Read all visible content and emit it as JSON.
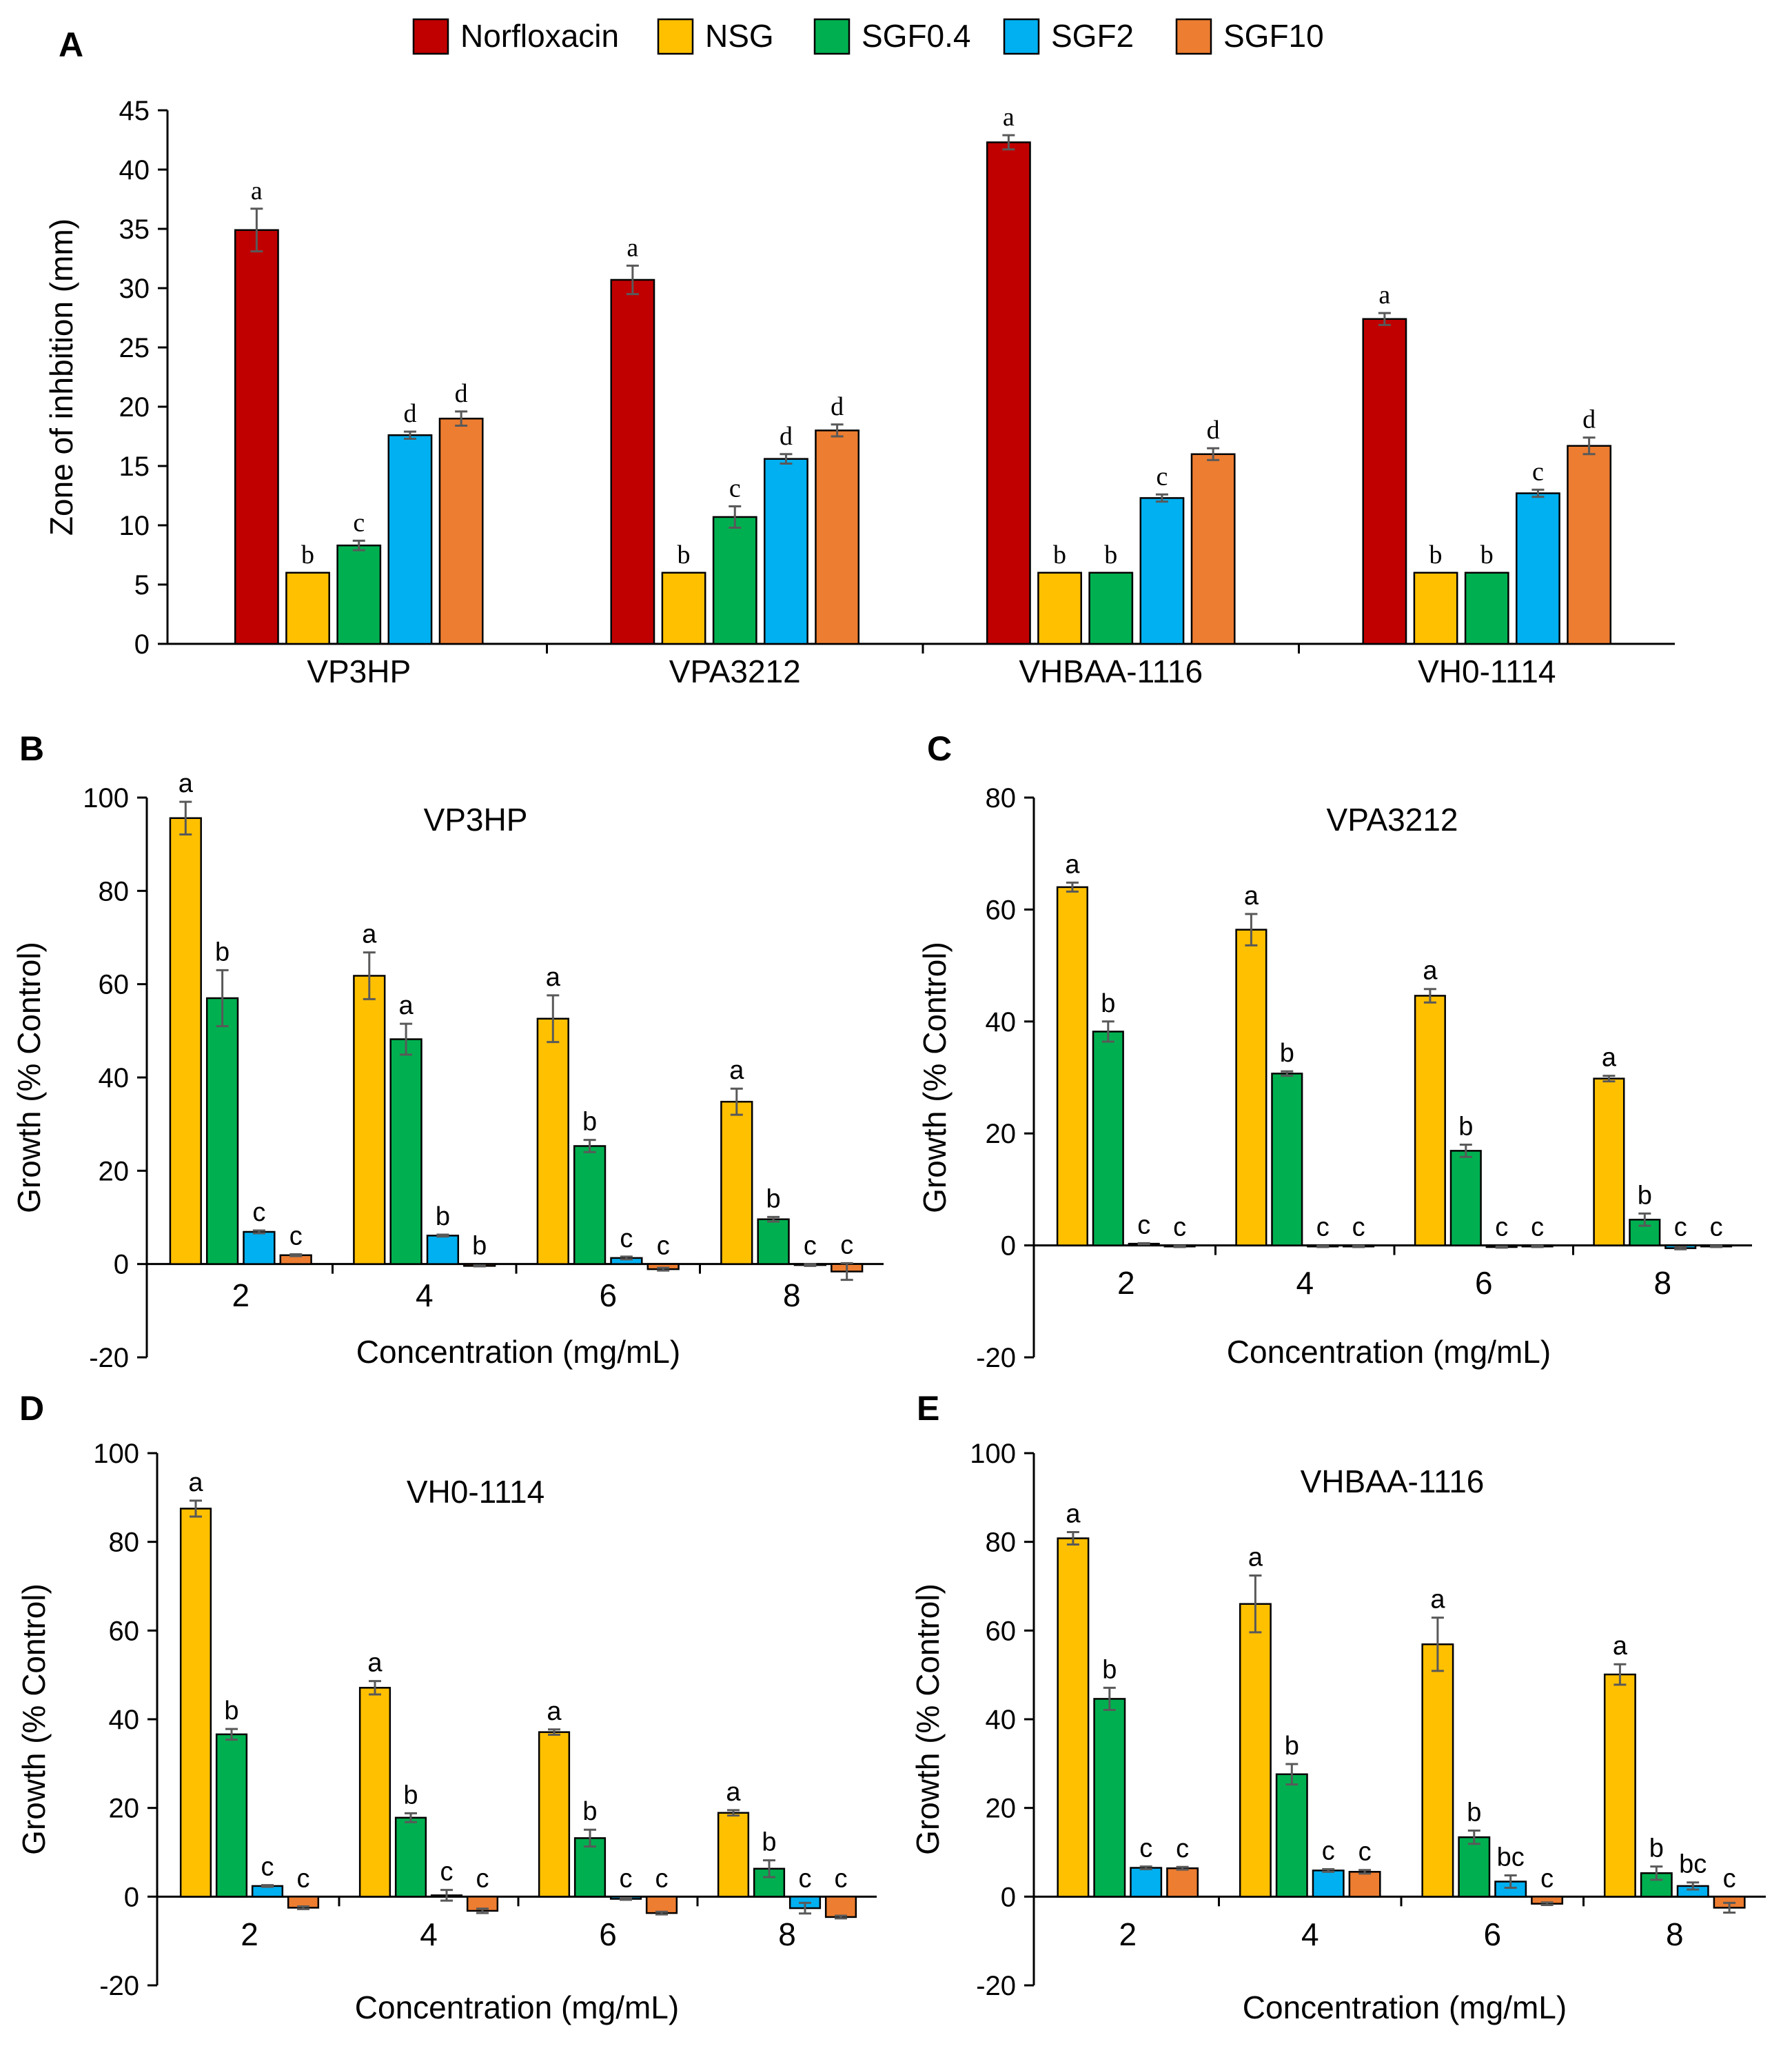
{
  "colors": {
    "Norfloxacin": "#C00000",
    "NSG": "#FFC000",
    "SGF0.4": "#00B050",
    "SGF2": "#00B0F0",
    "SGF10": "#ED7D31",
    "axis": "#000000",
    "error": "#595959"
  },
  "legend": [
    "Norfloxacin",
    "NSG",
    "SGF0.4",
    "SGF2",
    "SGF10"
  ],
  "chart_data": [
    {
      "panel": "A",
      "type": "bar",
      "title": "",
      "xlabel": "",
      "ylabel": "Zone of inhbition (mm)",
      "ylim": [
        0,
        45
      ],
      "ytick_step": 5,
      "categories": [
        "VP3HP",
        "VPA3212",
        "VHBAA-1116",
        "VH0-1114"
      ],
      "series": [
        {
          "name": "Norfloxacin",
          "values": [
            34.9,
            30.7,
            42.3,
            27.4
          ],
          "errors": [
            1.8,
            1.2,
            0.6,
            0.5
          ],
          "letters": [
            "a",
            "a",
            "a",
            "a"
          ]
        },
        {
          "name": "NSG",
          "values": [
            6,
            6,
            6,
            6
          ],
          "errors": [
            0,
            0,
            0,
            0
          ],
          "letters": [
            "b",
            "b",
            "b",
            "b"
          ]
        },
        {
          "name": "SGF0.4",
          "values": [
            8.3,
            10.7,
            6,
            6
          ],
          "errors": [
            0.4,
            0.9,
            0,
            0
          ],
          "letters": [
            "c",
            "c",
            "b",
            "b"
          ]
        },
        {
          "name": "SGF2",
          "values": [
            17.6,
            15.6,
            12.3,
            12.7
          ],
          "errors": [
            0.3,
            0.4,
            0.3,
            0.3
          ],
          "letters": [
            "d",
            "d",
            "c",
            "c"
          ]
        },
        {
          "name": "SGF10",
          "values": [
            19.0,
            18.0,
            16.0,
            16.7
          ],
          "errors": [
            0.6,
            0.5,
            0.5,
            0.7
          ],
          "letters": [
            "d",
            "d",
            "d",
            "d"
          ]
        }
      ]
    },
    {
      "panel": "B",
      "type": "bar",
      "title": "VP3HP",
      "xlabel": "Concentration (mg/mL)",
      "ylabel": "Growth (% Control)",
      "ylim": [
        -20,
        100
      ],
      "ytick_step": 20,
      "categories": [
        "2",
        "4",
        "6",
        "8"
      ],
      "series": [
        {
          "name": "NSG",
          "values": [
            95.6,
            61.8,
            52.6,
            34.8
          ],
          "errors": [
            3.5,
            5.0,
            5.0,
            2.8
          ],
          "letters": [
            "a",
            "a",
            "a",
            "a"
          ]
        },
        {
          "name": "SGF0.4",
          "values": [
            57.0,
            48.2,
            25.3,
            9.6
          ],
          "errors": [
            6.0,
            3.3,
            1.3,
            0.5
          ],
          "letters": [
            "b",
            "a",
            "b",
            "b"
          ]
        },
        {
          "name": "SGF2",
          "values": [
            6.9,
            6.1,
            1.3,
            -0.2
          ],
          "errors": [
            0.3,
            0.2,
            0.3,
            0.2
          ],
          "letters": [
            "c",
            "b",
            "c",
            "c"
          ]
        },
        {
          "name": "SGF10",
          "values": [
            1.9,
            -0.4,
            -1.1,
            -1.6
          ],
          "errors": [
            0.2,
            0.1,
            0.3,
            1.8
          ],
          "letters": [
            "c",
            "b",
            "c",
            "c"
          ]
        }
      ]
    },
    {
      "panel": "C",
      "type": "bar",
      "title": "VPA3212",
      "xlabel": "Concentration (mg/mL)",
      "ylabel": "Growth (% Control)",
      "ylim": [
        -20,
        80
      ],
      "ytick_step": 20,
      "categories": [
        "2",
        "4",
        "6",
        "8"
      ],
      "series": [
        {
          "name": "NSG",
          "values": [
            64.0,
            56.4,
            44.6,
            29.8
          ],
          "errors": [
            0.8,
            2.8,
            1.2,
            0.5
          ],
          "letters": [
            "a",
            "a",
            "a",
            "a"
          ]
        },
        {
          "name": "SGF0.4",
          "values": [
            38.2,
            30.7,
            16.9,
            4.6
          ],
          "errors": [
            1.8,
            0.4,
            1.1,
            1.1
          ],
          "letters": [
            "b",
            "b",
            "b",
            "b"
          ]
        },
        {
          "name": "SGF2",
          "values": [
            0.3,
            -0.2,
            -0.3,
            -0.5
          ],
          "errors": [
            0.1,
            0.1,
            0.1,
            0.2
          ],
          "letters": [
            "c",
            "c",
            "c",
            "c"
          ]
        },
        {
          "name": "SGF10",
          "values": [
            -0.2,
            -0.2,
            -0.2,
            -0.2
          ],
          "errors": [
            0.1,
            0.1,
            0.1,
            0.1
          ],
          "letters": [
            "c",
            "c",
            "c",
            "c"
          ]
        }
      ]
    },
    {
      "panel": "D",
      "type": "bar",
      "title": "VH0-1114",
      "xlabel": "Concentration (mg/mL)",
      "ylabel": "Growth (% Control)",
      "ylim": [
        -20,
        100
      ],
      "ytick_step": 20,
      "categories": [
        "2",
        "4",
        "6",
        "8"
      ],
      "series": [
        {
          "name": "NSG",
          "values": [
            87.5,
            47.1,
            37.1,
            18.9
          ],
          "errors": [
            1.8,
            1.5,
            0.6,
            0.6
          ],
          "letters": [
            "a",
            "a",
            "a",
            "a"
          ]
        },
        {
          "name": "SGF0.4",
          "values": [
            36.6,
            17.8,
            13.2,
            6.3
          ],
          "errors": [
            1.2,
            1.0,
            1.9,
            1.9
          ],
          "letters": [
            "b",
            "b",
            "b",
            "b"
          ]
        },
        {
          "name": "SGF2",
          "values": [
            2.4,
            0.3,
            -0.5,
            -2.6
          ],
          "errors": [
            0.2,
            1.2,
            0.2,
            1.2
          ],
          "letters": [
            "c",
            "c",
            "c",
            "c"
          ]
        },
        {
          "name": "SGF10",
          "values": [
            -2.5,
            -3.2,
            -3.7,
            -4.6
          ],
          "errors": [
            0.3,
            0.5,
            0.3,
            0.3
          ],
          "letters": [
            "c",
            "c",
            "c",
            "c"
          ]
        }
      ]
    },
    {
      "panel": "E",
      "type": "bar",
      "title": "VHBAA-1116",
      "xlabel": "Concentration (mg/mL)",
      "ylabel": "Growth (% Control)",
      "ylim": [
        -20,
        100
      ],
      "ytick_step": 20,
      "categories": [
        "2",
        "4",
        "6",
        "8"
      ],
      "series": [
        {
          "name": "NSG",
          "values": [
            80.8,
            66.0,
            56.9,
            50.1
          ],
          "errors": [
            1.4,
            6.4,
            6.0,
            2.3
          ],
          "letters": [
            "a",
            "a",
            "a",
            "a"
          ]
        },
        {
          "name": "SGF0.4",
          "values": [
            44.6,
            27.6,
            13.4,
            5.3
          ],
          "errors": [
            2.5,
            2.3,
            1.5,
            1.5
          ],
          "letters": [
            "b",
            "b",
            "b",
            "b"
          ]
        },
        {
          "name": "SGF2",
          "values": [
            6.5,
            5.9,
            3.4,
            2.4
          ],
          "errors": [
            0.3,
            0.3,
            1.4,
            0.8
          ],
          "letters": [
            "c",
            "c",
            "bc",
            "bc"
          ]
        },
        {
          "name": "SGF10",
          "values": [
            6.4,
            5.6,
            -1.6,
            -2.5
          ],
          "errors": [
            0.3,
            0.4,
            0.3,
            1.1
          ],
          "letters": [
            "c",
            "c",
            "c",
            "c"
          ]
        }
      ]
    }
  ]
}
